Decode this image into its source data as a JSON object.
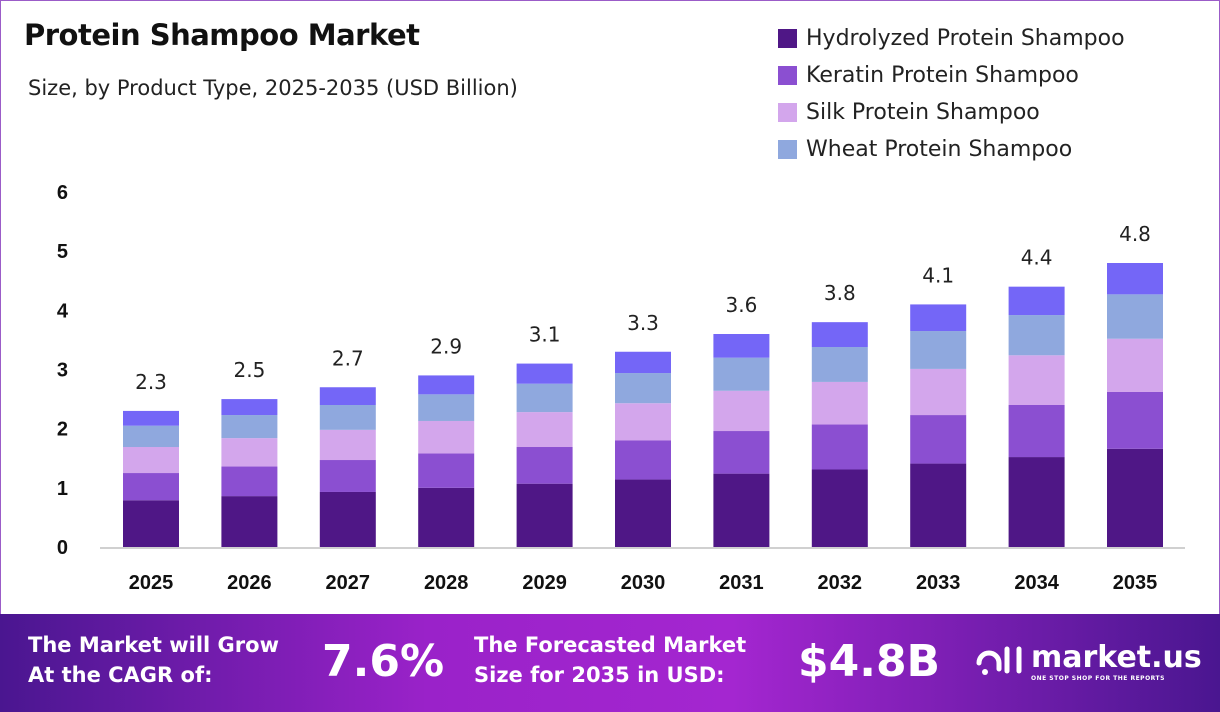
{
  "title": "Protein Shampoo Market",
  "subtitle": "Size, by Product Type, 2025-2035 (USD Billion)",
  "chart_data": {
    "type": "bar",
    "stacked": true,
    "categories": [
      "2025",
      "2026",
      "2027",
      "2028",
      "2029",
      "2030",
      "2031",
      "2032",
      "2033",
      "2034",
      "2035"
    ],
    "series": [
      {
        "name": "Hydrolyzed Protein Shampoo",
        "color": "#4f1786",
        "values": [
          0.79,
          0.86,
          0.93,
          1.0,
          1.07,
          1.14,
          1.24,
          1.31,
          1.41,
          1.52,
          1.66
        ]
      },
      {
        "name": "Keratin Protein Shampoo",
        "color": "#8b4fd1",
        "values": [
          0.46,
          0.5,
          0.54,
          0.58,
          0.62,
          0.66,
          0.72,
          0.76,
          0.82,
          0.88,
          0.96
        ]
      },
      {
        "name": "Silk Protein Shampoo",
        "color": "#d3a6ec",
        "values": [
          0.44,
          0.48,
          0.51,
          0.55,
          0.59,
          0.63,
          0.68,
          0.72,
          0.78,
          0.84,
          0.9
        ]
      },
      {
        "name": "Wheat Protein Shampoo",
        "color": "#8fa8de",
        "values": [
          0.36,
          0.39,
          0.42,
          0.45,
          0.48,
          0.51,
          0.56,
          0.59,
          0.64,
          0.68,
          0.75
        ]
      },
      {
        "color": "#7466f7",
        "values": [
          0.25,
          0.27,
          0.3,
          0.32,
          0.34,
          0.36,
          0.4,
          0.42,
          0.45,
          0.48,
          0.53
        ]
      }
    ],
    "totals": [
      "2.3",
      "2.5",
      "2.7",
      "2.9",
      "3.1",
      "3.3",
      "3.6",
      "3.8",
      "4.1",
      "4.4",
      "4.8"
    ],
    "ylim": [
      0,
      6
    ],
    "yticks": [
      "0",
      "1",
      "2",
      "3",
      "4",
      "5",
      "6"
    ],
    "grid": false,
    "legend_position": "top-right"
  },
  "footer": {
    "cagr_label_1": "The Market will Grow",
    "cagr_label_2": "At the CAGR of:",
    "cagr_value": "7.6%",
    "forecast_label_1": "The Forecasted Market",
    "forecast_label_2": "Size for 2035 in USD:",
    "forecast_value": "$4.8B",
    "logo_name": "market.us",
    "logo_tagline": "ONE STOP SHOP FOR THE REPORTS"
  }
}
